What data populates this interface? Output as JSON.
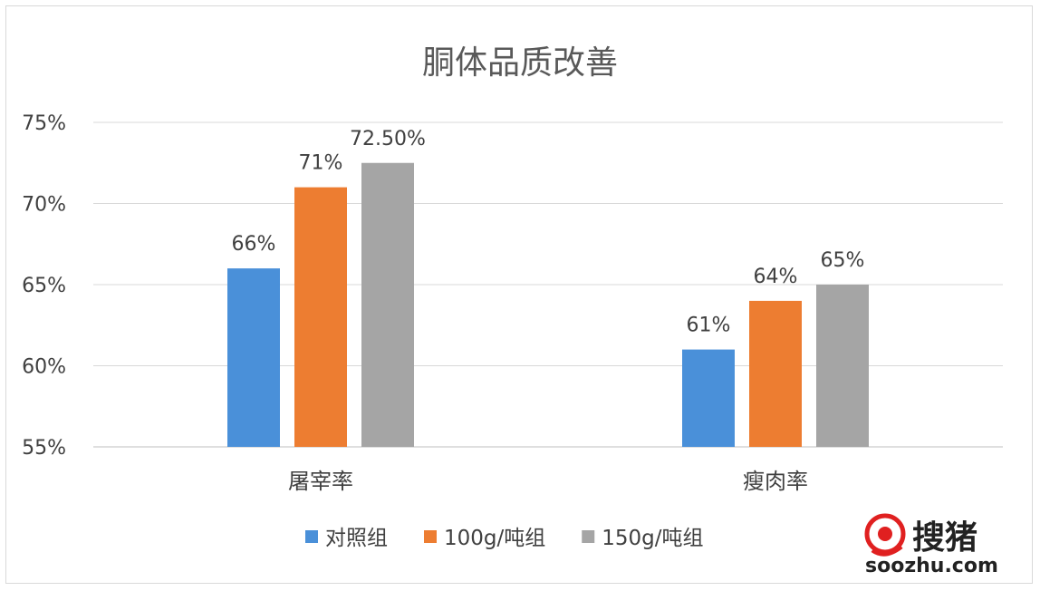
{
  "chart_data": {
    "type": "bar",
    "title": "胴体品质改善",
    "categories": [
      "屠宰率",
      "瘦肉率"
    ],
    "series": [
      {
        "name": "对照组",
        "values": [
          66,
          61
        ],
        "labels": [
          "66%",
          "61%"
        ],
        "color": "#4a90d9"
      },
      {
        "name": "100g/吨组",
        "values": [
          71,
          64
        ],
        "labels": [
          "71%",
          "64%"
        ],
        "color": "#ed7d31"
      },
      {
        "name": "150g/吨组",
        "values": [
          72.5,
          65
        ],
        "labels": [
          "72.50%",
          "65%"
        ],
        "color": "#a5a5a5"
      }
    ],
    "ylim": [
      55,
      75
    ],
    "yticks": [
      "55%",
      "60%",
      "65%",
      "70%",
      "75%"
    ],
    "grid": true,
    "legend": "bottom"
  },
  "watermark": {
    "logo_text": "搜猪",
    "url": "soozhu.com",
    "color": "#e02020"
  }
}
